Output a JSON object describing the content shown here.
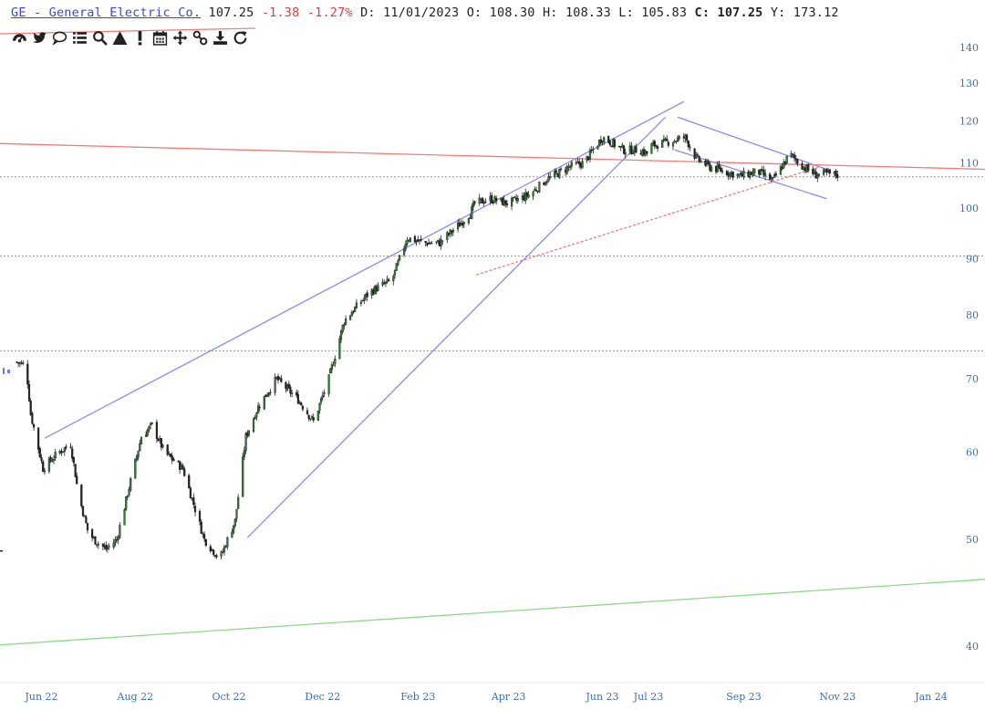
{
  "header": {
    "symbol": "GE - General Electric Co.",
    "price": "107.25",
    "change": "-1.38",
    "change_pct": "-1.27%",
    "date_label": "D:",
    "date": "11/01/2023",
    "open_label": "O:",
    "open": "108.30",
    "high_label": "H:",
    "high": "108.33",
    "low_label": "L:",
    "low": "105.83",
    "close_label": "C:",
    "close": "107.25",
    "y_label": "Y:",
    "y": "173.12"
  },
  "toolbar": {
    "icons": [
      "dashboard-icon",
      "twitter-icon",
      "comment-icon",
      "list-icon",
      "search-icon",
      "triangle-up-icon",
      "exclamation-icon",
      "calendar-icon",
      "move-icon",
      "link-icon",
      "download-icon",
      "refresh-icon"
    ]
  },
  "colors": {
    "candle_up": "#2f7d32",
    "candle_down": "#222222",
    "trend_blue": "#8a8cf0",
    "trend_red": "#ef7b7b",
    "trend_green": "#8fd88f",
    "axis_text": "#3b6fb5",
    "header_symbol": "#3b49c8",
    "header_negative": "#d9413a"
  },
  "chart_data": {
    "type": "line",
    "scale": "log",
    "ylim": [
      37,
      145
    ],
    "yticks": [
      40,
      50,
      60,
      70,
      80,
      90,
      100,
      110,
      120,
      130,
      140
    ],
    "ytick_labels": [
      "40",
      "50",
      "60",
      "70",
      "80",
      "90",
      "100",
      "110",
      "120",
      "130",
      "140"
    ],
    "xtick_labels": [
      "Jun 22",
      "Aug 22",
      "Oct 22",
      "Dec 22",
      "Feb 23",
      "Apr 23",
      "Jun 23",
      "Jul 23",
      "Sep 23",
      "Nov 23",
      "Jan 24"
    ],
    "xtick_dates": [
      "2022-06-01",
      "2022-08-01",
      "2022-10-01",
      "2022-12-01",
      "2023-02-01",
      "2023-04-01",
      "2023-06-01",
      "2023-07-01",
      "2023-09-01",
      "2023-11-01",
      "2024-01-01"
    ],
    "xlim": [
      "2022-05-05",
      "2024-02-05"
    ],
    "series": [
      {
        "x": [
          "2022-05-15",
          "2022-05-22",
          "2022-05-25",
          "2022-06-02",
          "2022-06-12",
          "2022-06-20",
          "2022-06-25",
          "2022-07-01",
          "2022-07-05",
          "2022-07-13",
          "2022-07-20",
          "2022-07-27",
          "2022-08-05",
          "2022-08-12",
          "2022-08-20",
          "2022-09-01",
          "2022-09-15",
          "2022-09-25",
          "2022-10-05",
          "2022-10-12",
          "2022-10-20",
          "2022-11-01",
          "2022-11-15",
          "2022-11-25",
          "2022-12-05",
          "2022-12-15",
          "2022-12-25",
          "2023-01-01",
          "2023-01-15",
          "2023-01-25",
          "2023-02-05",
          "2023-02-15",
          "2023-03-01",
          "2023-03-07",
          "2023-03-10",
          "2023-03-20",
          "2023-04-01",
          "2023-04-15",
          "2023-04-25",
          "2023-05-10",
          "2023-05-20",
          "2023-06-01",
          "2023-06-15",
          "2023-06-25",
          "2023-07-01",
          "2023-07-03",
          "2023-07-15",
          "2023-07-25",
          "2023-08-01",
          "2023-08-10",
          "2023-08-20",
          "2023-08-30",
          "2023-09-10",
          "2023-09-20",
          "2023-10-01",
          "2023-10-10",
          "2023-10-18",
          "2023-10-24",
          "2023-11-01"
        ],
        "values": [
          72.5,
          72,
          65,
          58,
          60,
          61,
          55,
          51,
          50,
          49,
          50,
          55,
          62,
          63.5,
          60,
          58,
          50,
          48,
          52,
          62,
          66,
          70,
          67,
          64,
          70,
          79,
          82,
          84,
          86,
          94,
          93,
          93,
          97,
          99,
          101,
          102,
          101,
          103,
          106,
          109,
          110,
          116,
          113,
          113,
          112,
          114,
          115,
          116,
          111,
          109,
          108,
          107,
          108,
          106,
          112,
          109,
          107.25,
          107.5,
          107.25
        ]
      }
    ],
    "trendlines": [
      {
        "color": "blue",
        "from": [
          "2022-06-03",
          61.8
        ],
        "to": [
          "2023-07-24",
          125
        ]
      },
      {
        "color": "blue",
        "from": [
          "2022-10-13",
          50.2
        ],
        "to": [
          "2023-07-12",
          121
        ]
      },
      {
        "color": "blue",
        "from": [
          "2023-07-20",
          121
        ],
        "to": [
          "2023-10-25",
          108.5
        ]
      },
      {
        "color": "blue",
        "from": [
          "2023-07-18",
          113
        ],
        "to": [
          "2023-10-25",
          102
        ]
      },
      {
        "color": "red",
        "from": [
          "2022-05-05",
          114.5
        ],
        "to": [
          "2024-02-05",
          108.5
        ]
      },
      {
        "color": "red",
        "from": [
          "2023-03-11",
          87
        ],
        "to": [
          "2023-10-20",
          109
        ],
        "dashed": true
      },
      {
        "color": "green",
        "from": [
          "2022-05-05",
          40.1
        ],
        "to": [
          "2024-02-05",
          46
        ]
      }
    ],
    "hlines": [
      106.8,
      90.5,
      74.2
    ],
    "xlabel": "",
    "ylabel": "",
    "title": ""
  }
}
